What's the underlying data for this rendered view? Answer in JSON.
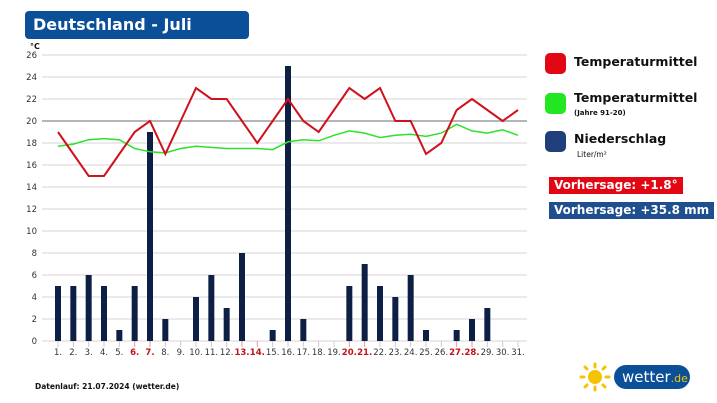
{
  "title": "Deutschland - Juli",
  "y_unit": "°C",
  "legend": {
    "items": [
      {
        "label": "Temperaturmittel",
        "sub": "",
        "color": "#e30613"
      },
      {
        "label": "Temperaturmittel",
        "sub": "(Jahre 91-20)",
        "color": "#22e622"
      },
      {
        "label": "Niederschlag",
        "sub": "Liter/m²",
        "color": "#1f3f7a"
      }
    ]
  },
  "forecast": {
    "temp": {
      "label": "Vorhersage: +1.8°",
      "color": "#e30613"
    },
    "rain": {
      "label": "Vorhersage: +35.8 mm",
      "color": "#1f4f8f"
    }
  },
  "footer": {
    "text": "Datenlauf: 21.07.2024 (wetter.de)"
  },
  "logo": {
    "name": "wetter",
    "suffix": ".de"
  },
  "chart_data": {
    "type": "bar+line",
    "title": "Deutschland - Juli",
    "xlabel": "",
    "ylabel": "°C",
    "ylim": [
      0,
      26
    ],
    "yticks": [
      0,
      2,
      4,
      6,
      8,
      10,
      12,
      14,
      16,
      18,
      20,
      22,
      24,
      26
    ],
    "grid": true,
    "legend_position": "right",
    "categories": [
      "1.",
      "2.",
      "3.",
      "4.",
      "5.",
      "6.",
      "7.",
      "8.",
      "9.",
      "10.",
      "11.",
      "12.",
      "13.",
      "14.",
      "15.",
      "16.",
      "17.",
      "18.",
      "19.",
      "20.",
      "21.",
      "22.",
      "23.",
      "24.",
      "25.",
      "26.",
      "27.",
      "28.",
      "29.",
      "30.",
      "31."
    ],
    "weekend_days": [
      6,
      7,
      13,
      14,
      20,
      21,
      27,
      28
    ],
    "series": [
      {
        "name": "Niederschlag (Liter/m²)",
        "type": "bar",
        "color": "#0d1f45",
        "values": [
          5,
          5,
          6,
          5,
          1,
          5,
          19,
          2,
          0,
          4,
          6,
          3,
          8,
          0,
          1,
          25,
          2,
          0,
          0,
          5,
          7,
          5,
          4,
          6,
          1,
          0,
          1,
          2,
          3,
          0,
          0
        ]
      },
      {
        "name": "Temperaturmittel",
        "type": "line",
        "color": "#d0101a",
        "values": [
          19,
          17,
          15,
          15,
          17,
          19,
          20,
          17,
          20,
          23,
          22,
          22,
          20,
          18,
          20,
          22,
          20,
          19,
          21,
          23,
          22,
          23,
          20,
          20,
          17,
          18,
          21,
          22,
          21,
          20,
          21
        ]
      },
      {
        "name": "Temperaturmittel (Jahre 91-20)",
        "type": "line",
        "color": "#2ee02e",
        "values": [
          17.7,
          17.9,
          18.3,
          18.4,
          18.3,
          17.5,
          17.2,
          17.1,
          17.5,
          17.7,
          17.6,
          17.5,
          17.5,
          17.5,
          17.4,
          18.1,
          18.3,
          18.2,
          18.7,
          19.1,
          18.9,
          18.5,
          18.7,
          18.8,
          18.6,
          18.9,
          19.7,
          19.1,
          18.9,
          19.2,
          18.7
        ]
      }
    ]
  }
}
